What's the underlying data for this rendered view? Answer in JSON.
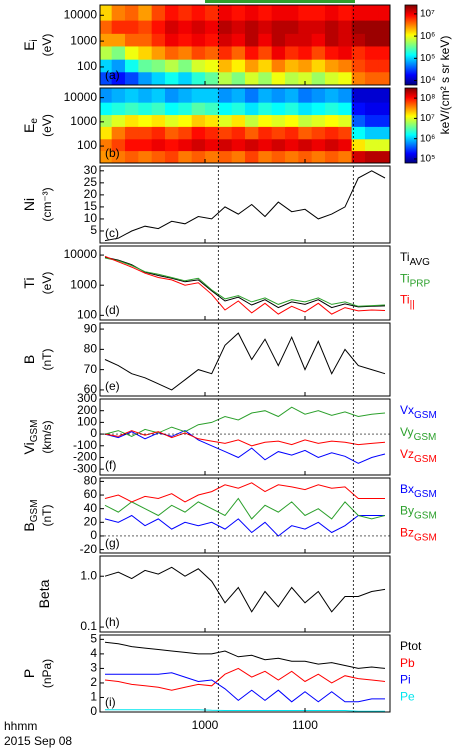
{
  "figure": {
    "x": [
      540,
      548,
      556,
      564,
      572,
      580,
      588,
      596,
      604,
      612,
      620,
      628,
      636,
      644,
      652,
      660,
      668,
      676,
      684,
      692,
      700,
      708
    ],
    "xlim": [
      537,
      711
    ],
    "xticks": [
      {
        "value": 600,
        "label": "1000"
      },
      {
        "value": 660,
        "label": "1100"
      }
    ],
    "xlabel": "hhmm",
    "date": "2015 Sep 08",
    "markers": [
      608,
      689
    ],
    "highlight": [
      600,
      690
    ],
    "highlight_color": "#2ca02c",
    "colorbar_label": "keV/(cm² s sr keV)"
  },
  "chart_data": [
    {
      "type": "heatmap",
      "label": "(a)",
      "ylabel": "E",
      "ylabel_sub": "i",
      "yunit": "(eV)",
      "log": true,
      "ylim": [
        20,
        25000
      ],
      "yticks": [
        100,
        1000,
        10000
      ],
      "xbins": [
        536,
        544,
        552,
        560,
        568,
        576,
        584,
        592,
        600,
        608,
        616,
        624,
        632,
        640,
        648,
        656,
        664,
        672,
        680,
        688,
        696,
        704,
        712
      ],
      "ybins": [
        20,
        65,
        200,
        650,
        2000,
        6500,
        25000
      ],
      "z": [
        [
          4.5,
          4.3,
          4.5,
          4.8,
          5,
          5.2,
          5,
          5.3,
          5.5,
          5.8,
          5.6,
          5.9,
          5.7,
          6,
          5.8,
          5.9,
          5.7,
          5.9,
          6,
          6.5,
          6.6,
          6.6
        ],
        [
          5,
          4.8,
          5.2,
          5.5,
          5.6,
          5.8,
          5.6,
          5.9,
          6,
          6.3,
          6.1,
          6.4,
          6.2,
          6.5,
          6.3,
          6.4,
          6.2,
          6.4,
          6.5,
          6.7,
          6.8,
          6.8
        ],
        [
          5.8,
          5.6,
          6,
          6.2,
          6.4,
          6.6,
          6.5,
          6.7,
          6.6,
          6.8,
          6.6,
          6.9,
          6.7,
          7,
          6.8,
          6.9,
          6.7,
          6.9,
          7,
          6.8,
          6.9,
          6.9
        ],
        [
          6.4,
          6.4,
          6.6,
          6.6,
          6.8,
          7,
          6.9,
          7,
          6.9,
          7.1,
          7,
          7.2,
          7,
          7.2,
          7.1,
          7.1,
          7,
          7.2,
          7.1,
          7.2,
          7.3,
          7.3
        ],
        [
          6.6,
          6.8,
          6.8,
          6.7,
          6.9,
          7.1,
          7,
          7.1,
          7,
          7.2,
          7.1,
          7.2,
          7.1,
          7.2,
          7.2,
          7.1,
          7.1,
          7.2,
          7.1,
          7.3,
          7.3,
          7.3
        ],
        [
          6.2,
          6.5,
          6.6,
          6.4,
          6.7,
          6.9,
          6.8,
          6.9,
          6.8,
          7,
          6.9,
          7,
          6.9,
          7,
          7,
          6.9,
          6.9,
          7,
          6.9,
          7,
          7,
          7
        ]
      ],
      "clim": [
        3.8,
        7.4
      ],
      "cticks": [
        {
          "value": 4,
          "label": "10⁴"
        },
        {
          "value": 5,
          "label": "10⁵"
        },
        {
          "value": 6,
          "label": "10⁶"
        },
        {
          "value": 7,
          "label": "10⁷"
        }
      ]
    },
    {
      "type": "heatmap",
      "label": "(b)",
      "ylabel": "E",
      "ylabel_sub": "e",
      "yunit": "(eV)",
      "log": true,
      "ylim": [
        20,
        25000
      ],
      "yticks": [
        100,
        1000,
        10000
      ],
      "xbins": [
        536,
        544,
        552,
        560,
        568,
        576,
        584,
        592,
        600,
        608,
        616,
        624,
        632,
        640,
        648,
        656,
        664,
        672,
        680,
        688,
        696,
        704,
        712
      ],
      "ybins": [
        20,
        65,
        200,
        650,
        2000,
        6500,
        25000
      ],
      "z": [
        [
          7.5,
          7.6,
          7.7,
          7.6,
          7.7,
          7.8,
          7.6,
          7.7,
          7.6,
          7.7,
          7.6,
          7.8,
          7.6,
          7.7,
          7.6,
          7.7,
          7.6,
          7.7,
          7.6,
          8.2,
          8.3,
          8.3
        ],
        [
          7.6,
          7.8,
          8,
          8,
          8.1,
          8,
          8.1,
          8.2,
          8.1,
          8.2,
          8.1,
          8.2,
          8.1,
          8.2,
          8.1,
          8.2,
          8.1,
          8.2,
          8.1,
          7.2,
          7,
          7
        ],
        [
          7.2,
          7.6,
          7.8,
          7.8,
          7.9,
          7.7,
          7.8,
          8,
          7.9,
          7.8,
          7.9,
          7.7,
          7.9,
          7.8,
          7.9,
          7.7,
          7.8,
          7.9,
          7.8,
          6.2,
          6,
          6
        ],
        [
          6.8,
          7,
          7.2,
          7.1,
          7.2,
          7,
          7.1,
          7.3,
          7.2,
          7,
          7.2,
          6.9,
          7.1,
          7,
          7.1,
          6.9,
          7,
          7.1,
          7,
          5.6,
          5.4,
          5.4
        ],
        [
          6.2,
          6.3,
          6.4,
          6.3,
          6.4,
          6.2,
          6.3,
          6.5,
          6.4,
          6.2,
          6.3,
          6.1,
          6.3,
          6.2,
          6.3,
          6.1,
          6.2,
          6.3,
          6.2,
          5.3,
          5.2,
          5.2
        ],
        [
          5.8,
          5.9,
          6,
          5.9,
          6,
          5.8,
          5.9,
          6,
          6,
          5.8,
          5.9,
          5.7,
          5.9,
          5.8,
          5.9,
          5.7,
          5.8,
          5.9,
          5.8,
          5.1,
          5.1,
          5.1
        ]
      ],
      "clim": [
        4.8,
        8.5
      ],
      "cticks": [
        {
          "value": 5,
          "label": "10⁵"
        },
        {
          "value": 6,
          "label": "10⁶"
        },
        {
          "value": 7,
          "label": "10⁷"
        },
        {
          "value": 8,
          "label": "10⁸"
        }
      ]
    },
    {
      "type": "line",
      "label": "(c)",
      "ylabel": "Ni",
      "yunit": "(cm⁻³)",
      "ylim": [
        0,
        32
      ],
      "yticks": [
        5,
        10,
        15,
        20,
        25,
        30
      ],
      "series": [
        {
          "color": "#000000",
          "values": [
            1,
            2,
            5,
            7,
            6,
            9,
            8,
            11,
            10,
            15,
            12,
            16,
            11,
            17,
            13,
            14,
            10,
            12,
            15,
            27,
            30,
            27
          ]
        }
      ]
    },
    {
      "type": "line",
      "label": "(d)",
      "ylabel": "Ti",
      "yunit": "(eV)",
      "log": true,
      "ylim": [
        70,
        20000
      ],
      "yticks": [
        100,
        1000,
        10000
      ],
      "series": [
        {
          "name": "Ti",
          "sub": "AVG",
          "color": "#000000",
          "values": [
            8500,
            6800,
            4800,
            2700,
            2100,
            1700,
            1300,
            1500,
            650,
            300,
            400,
            220,
            330,
            180,
            280,
            230,
            330,
            180,
            240,
            190,
            200,
            205
          ]
        },
        {
          "name": "Ti",
          "sub": "PRP",
          "color": "#2ca02c",
          "values": [
            8000,
            6500,
            4500,
            2800,
            2300,
            1800,
            1400,
            1700,
            700,
            350,
            450,
            280,
            380,
            230,
            330,
            280,
            380,
            230,
            280,
            200,
            210,
            220
          ]
        },
        {
          "name": "Ti",
          "sub": "||",
          "color": "#ff0000",
          "values": [
            9000,
            6000,
            4000,
            2500,
            1800,
            1500,
            1000,
            1200,
            500,
            150,
            300,
            120,
            250,
            110,
            200,
            130,
            250,
            110,
            180,
            140,
            150,
            145
          ]
        }
      ]
    },
    {
      "type": "line",
      "label": "(e)",
      "ylabel": "B",
      "yunit": "(nT)",
      "ylim": [
        57,
        93
      ],
      "yticks": [
        60,
        70,
        80,
        90
      ],
      "series": [
        {
          "color": "#000000",
          "values": [
            75,
            72,
            68,
            66,
            63,
            60,
            65,
            70,
            68,
            82,
            88,
            75,
            85,
            72,
            86,
            70,
            84,
            68,
            80,
            72,
            70,
            68
          ]
        }
      ]
    },
    {
      "type": "line",
      "label": "(f)",
      "ylabel": "Vi",
      "ylabel_sub": "GSM",
      "yunit": "(km/s)",
      "ylim": [
        -350,
        300
      ],
      "yticks": [
        -300,
        -200,
        -100,
        0,
        100,
        200,
        300
      ],
      "zero_line": true,
      "series": [
        {
          "name": "Vx",
          "sub": "GSM",
          "color": "#0000ff",
          "values": [
            0,
            -30,
            20,
            -40,
            10,
            -20,
            30,
            -50,
            -100,
            -150,
            -200,
            -120,
            -220,
            -150,
            -180,
            -140,
            -200,
            -160,
            -190,
            -250,
            -200,
            -170
          ]
        },
        {
          "name": "Vy",
          "sub": "GSM",
          "color": "#2ca02c",
          "values": [
            0,
            30,
            -20,
            40,
            10,
            60,
            20,
            80,
            100,
            150,
            120,
            180,
            200,
            150,
            230,
            170,
            200,
            160,
            190,
            150,
            170,
            180
          ]
        },
        {
          "name": "Vz",
          "sub": "GSM",
          "color": "#ff0000",
          "values": [
            0,
            -20,
            30,
            -10,
            20,
            -30,
            10,
            -40,
            -60,
            -80,
            -50,
            -100,
            -70,
            -60,
            -90,
            -50,
            -80,
            -60,
            -70,
            -90,
            -80,
            -70
          ]
        }
      ]
    },
    {
      "type": "line",
      "label": "(g)",
      "ylabel": "B",
      "ylabel_sub": "GSM",
      "yunit": "(nT)",
      "ylim": [
        -25,
        85
      ],
      "yticks": [
        -20,
        0,
        20,
        40,
        60,
        80
      ],
      "zero_line": true,
      "series": [
        {
          "name": "Bx",
          "sub": "GSM",
          "color": "#0000ff",
          "values": [
            25,
            20,
            30,
            15,
            25,
            10,
            20,
            15,
            20,
            10,
            25,
            5,
            20,
            0,
            15,
            10,
            20,
            5,
            15,
            30,
            30,
            30
          ]
        },
        {
          "name": "By",
          "sub": "GSM",
          "color": "#2ca02c",
          "values": [
            45,
            35,
            50,
            40,
            30,
            45,
            35,
            50,
            40,
            30,
            55,
            25,
            45,
            35,
            50,
            30,
            40,
            25,
            50,
            30,
            25,
            30
          ]
        },
        {
          "name": "Bz",
          "sub": "GSM",
          "color": "#ff0000",
          "values": [
            55,
            60,
            50,
            58,
            55,
            62,
            50,
            60,
            65,
            75,
            70,
            78,
            65,
            75,
            72,
            68,
            75,
            70,
            72,
            55,
            55,
            55
          ]
        }
      ]
    },
    {
      "type": "line",
      "label": "(h)",
      "ylabel": "Beta",
      "log": true,
      "ylim": [
        0.08,
        2.5
      ],
      "yticks": [
        0.1,
        {
          "value": 1,
          "label": "1.0"
        }
      ],
      "series": [
        {
          "color": "#000000",
          "values": [
            1.0,
            1.2,
            0.9,
            1.3,
            1.1,
            1.5,
            1.0,
            1.4,
            0.8,
            0.3,
            0.6,
            0.2,
            0.5,
            0.25,
            0.6,
            0.3,
            0.5,
            0.2,
            0.4,
            0.4,
            0.5,
            0.55
          ]
        }
      ]
    },
    {
      "type": "line",
      "label": "(i)",
      "ylabel": "P",
      "yunit": "(nPa)",
      "ylim": [
        0,
        5.3
      ],
      "yticks": [
        0,
        1,
        2,
        3,
        4,
        5
      ],
      "series": [
        {
          "name": "Ptot",
          "color": "#000000",
          "values": [
            4.8,
            4.7,
            4.5,
            4.4,
            4.3,
            4.2,
            4.1,
            4.0,
            4.0,
            4.2,
            3.8,
            3.9,
            3.6,
            3.7,
            3.5,
            3.5,
            3.3,
            3.4,
            3.2,
            3.0,
            3.1,
            3.0
          ]
        },
        {
          "name": "Pb",
          "color": "#ff0000",
          "values": [
            2.2,
            2.1,
            1.9,
            1.8,
            1.7,
            1.5,
            1.7,
            1.9,
            1.8,
            2.6,
            3.0,
            2.4,
            2.8,
            2.2,
            2.8,
            2.1,
            2.6,
            2.0,
            2.5,
            2.3,
            2.2,
            2.1
          ]
        },
        {
          "name": "Pi",
          "color": "#0000ff",
          "values": [
            2.6,
            2.6,
            2.6,
            2.6,
            2.6,
            2.7,
            2.4,
            2.1,
            2.2,
            1.6,
            0.8,
            1.5,
            0.8,
            1.5,
            0.7,
            1.4,
            0.7,
            1.4,
            0.7,
            0.7,
            0.9,
            0.9
          ]
        },
        {
          "name": "Pe",
          "color": "#00e5ee",
          "values": [
            0.15,
            0.15,
            0.15,
            0.15,
            0.15,
            0.15,
            0.15,
            0.15,
            0.12,
            0.1,
            0.1,
            0.1,
            0.1,
            0.1,
            0.1,
            0.1,
            0.1,
            0.1,
            0.1,
            0.05,
            0.05,
            0.05
          ]
        }
      ]
    }
  ]
}
